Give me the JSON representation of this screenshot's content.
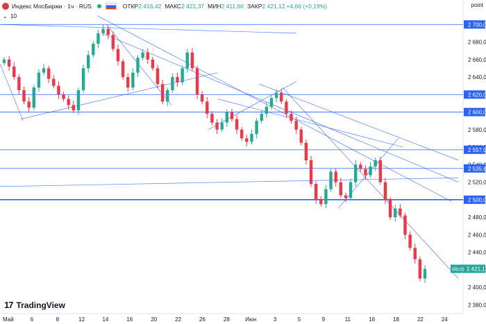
{
  "header": {
    "symbol": "Индекс МосБиржи · 1ч · RUS",
    "open_label": "ОТКР",
    "open_value": "2 416,42",
    "high_label": "МАКС",
    "high_value": "2 421,37",
    "low_label": "МИН",
    "low_value": "2 411,66",
    "close_label": "ЗАКР",
    "close_value": "2 421,12",
    "change": "+4,66 (+0,19%)",
    "indicator": "10",
    "scale_button": "point"
  },
  "branding": {
    "logo_text": "TradingView"
  },
  "colors": {
    "up": "#22ab94",
    "down": "#f23645",
    "line": "#2962ff",
    "price_tag": "#26a69a"
  },
  "chart_data": {
    "type": "candlestick",
    "title": "Индекс МосБиржи · 1ч · RUS",
    "ylim": [
      2370,
      2720
    ],
    "y_ticks": [
      "2 700,00",
      "2 680,00",
      "2 660,00",
      "2 640,00",
      "2 620,00",
      "2 600,00",
      "2 580,00",
      "2 560,00",
      "2 540,00",
      "2 520,00",
      "2 500,00",
      "2 480,00",
      "2 460,00",
      "2 440,00",
      "2 420,00",
      "2 400,00",
      "2 380,00"
    ],
    "x_ticks": [
      {
        "label": "Май",
        "pos": 0.0
      },
      {
        "label": "6",
        "pos": 0.065
      },
      {
        "label": "8",
        "pos": 0.122
      },
      {
        "label": "12",
        "pos": 0.176
      },
      {
        "label": "14",
        "pos": 0.229
      },
      {
        "label": "16",
        "pos": 0.283
      },
      {
        "label": "20",
        "pos": 0.337
      },
      {
        "label": "22",
        "pos": 0.391
      },
      {
        "label": "26",
        "pos": 0.445
      },
      {
        "label": "28",
        "pos": 0.499
      },
      {
        "label": "Июн",
        "pos": 0.553
      },
      {
        "label": "3",
        "pos": 0.607
      },
      {
        "label": "5",
        "pos": 0.661
      },
      {
        "label": "9",
        "pos": 0.715
      },
      {
        "label": "11",
        "pos": 0.769
      },
      {
        "label": "16",
        "pos": 0.823
      },
      {
        "label": "18",
        "pos": 0.877
      },
      {
        "label": "22",
        "pos": 0.931
      },
      {
        "label": "24",
        "pos": 0.985
      }
    ],
    "price_labels": [
      {
        "value": 2700.0,
        "label": "2 700,00"
      },
      {
        "value": 2620.0,
        "label": "2 620,00"
      },
      {
        "value": 2600.0,
        "label": "2 600,00"
      },
      {
        "value": 2557.0,
        "label": "2 557,00"
      },
      {
        "value": 2535.68,
        "label": "2 535,68"
      },
      {
        "value": 2500.0,
        "label": "2 500,00"
      }
    ],
    "current": {
      "symbol": "IRUS",
      "value": 2421.12,
      "label": "2 421,12"
    },
    "closes": [
      2660,
      2652,
      2640,
      2625,
      2612,
      2605,
      2628,
      2645,
      2650,
      2638,
      2630,
      2620,
      2615,
      2608,
      2602,
      2625,
      2650,
      2665,
      2678,
      2690,
      2695,
      2688,
      2672,
      2658,
      2640,
      2628,
      2645,
      2662,
      2668,
      2660,
      2650,
      2632,
      2612,
      2625,
      2640,
      2634,
      2650,
      2668,
      2650,
      2620,
      2612,
      2598,
      2588,
      2580,
      2588,
      2600,
      2592,
      2580,
      2570,
      2566,
      2575,
      2590,
      2598,
      2606,
      2616,
      2622,
      2612,
      2598,
      2590,
      2580,
      2565,
      2545,
      2518,
      2500,
      2495,
      2512,
      2532,
      2520,
      2505,
      2502,
      2520,
      2540,
      2535,
      2528,
      2538,
      2545,
      2520,
      2500,
      2480,
      2490,
      2482,
      2460,
      2445,
      2432,
      2410,
      2421
    ],
    "trend_lines": [
      [
        0.0,
        2700,
        0.64,
        2690
      ],
      [
        0.0,
        2655,
        0.05,
        2590
      ],
      [
        0.045,
        2592,
        0.47,
        2645
      ],
      [
        0.21,
        2710,
        0.975,
        2498
      ],
      [
        0.23,
        2700,
        0.37,
        2608
      ],
      [
        0.22,
        2690,
        0.99,
        2520
      ],
      [
        0.0,
        2515,
        0.99,
        2525
      ],
      [
        0.61,
        2628,
        0.99,
        2410
      ],
      [
        0.47,
        2615,
        0.87,
        2560
      ],
      [
        0.45,
        2580,
        0.64,
        2635
      ],
      [
        0.73,
        2490,
        0.86,
        2570
      ],
      [
        0.56,
        2632,
        0.99,
        2545
      ]
    ],
    "grid": true
  }
}
